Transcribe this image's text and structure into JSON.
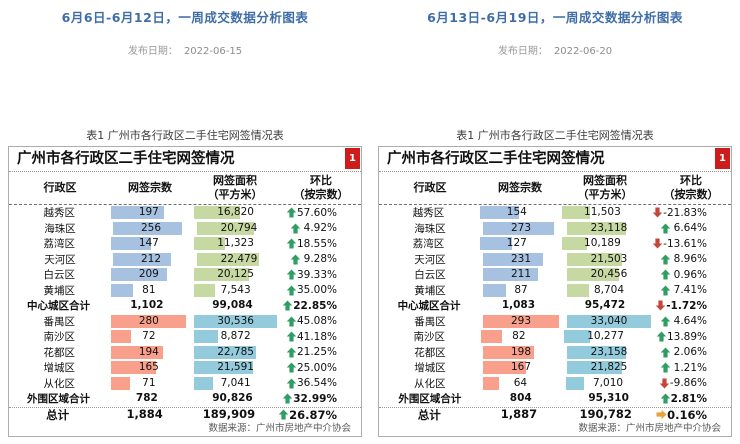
{
  "panels": [
    {
      "title": "6月6日-6月12日，一周成交数据分析图表",
      "publish_label": "发布日期：",
      "publish_date": "2022-06-15",
      "caption": "表1 广州市各行政区二手住宅网签情况表",
      "table": {
        "header_title": "广州市各行政区二手住宅网签情况",
        "badge": "1",
        "columns": [
          {
            "label": "行政区",
            "sub": ""
          },
          {
            "label": "网签宗数",
            "sub": ""
          },
          {
            "label": "网签面积",
            "sub": "（平方米）"
          },
          {
            "label": "环比",
            "sub": "（按宗数）"
          }
        ],
        "rows": [
          {
            "name": "越秀区",
            "count": "197",
            "count_v": 197,
            "area": "16,820",
            "area_v": 16820,
            "dir": "up",
            "pct": "57.60%",
            "group": "central"
          },
          {
            "name": "海珠区",
            "count": "256",
            "count_v": 256,
            "area": "20,794",
            "area_v": 20794,
            "dir": "up",
            "pct": "4.92%",
            "group": "central"
          },
          {
            "name": "荔湾区",
            "count": "147",
            "count_v": 147,
            "area": "11,323",
            "area_v": 11323,
            "dir": "up",
            "pct": "18.55%",
            "group": "central"
          },
          {
            "name": "天河区",
            "count": "212",
            "count_v": 212,
            "area": "22,479",
            "area_v": 22479,
            "dir": "up",
            "pct": "9.28%",
            "group": "central"
          },
          {
            "name": "白云区",
            "count": "209",
            "count_v": 209,
            "area": "20,125",
            "area_v": 20125,
            "dir": "up",
            "pct": "39.33%",
            "group": "central"
          },
          {
            "name": "黄埔区",
            "count": "81",
            "count_v": 81,
            "area": "7,543",
            "area_v": 7543,
            "dir": "up",
            "pct": "35.00%",
            "group": "central"
          },
          {
            "name": "中心城区合计",
            "count": "1,102",
            "count_v": 1102,
            "area": "99,084",
            "area_v": 99084,
            "dir": "up",
            "pct": "22.85%",
            "group": "summary"
          },
          {
            "name": "番禺区",
            "count": "280",
            "count_v": 280,
            "area": "30,536",
            "area_v": 30536,
            "dir": "up",
            "pct": "45.08%",
            "group": "outer"
          },
          {
            "name": "南沙区",
            "count": "72",
            "count_v": 72,
            "area": "8,872",
            "area_v": 8872,
            "dir": "up",
            "pct": "41.18%",
            "group": "outer"
          },
          {
            "name": "花都区",
            "count": "194",
            "count_v": 194,
            "area": "22,785",
            "area_v": 22785,
            "dir": "up",
            "pct": "21.25%",
            "group": "outer"
          },
          {
            "name": "增城区",
            "count": "165",
            "count_v": 165,
            "area": "21,591",
            "area_v": 21591,
            "dir": "up",
            "pct": "25.00%",
            "group": "outer"
          },
          {
            "name": "从化区",
            "count": "71",
            "count_v": 71,
            "area": "7,041",
            "area_v": 7041,
            "dir": "up",
            "pct": "36.54%",
            "group": "outer"
          },
          {
            "name": "外围区域合计",
            "count": "782",
            "count_v": 782,
            "area": "90,826",
            "area_v": 90826,
            "dir": "up",
            "pct": "32.99%",
            "group": "summary"
          },
          {
            "name": "总计",
            "count": "1,884",
            "count_v": 1884,
            "area": "189,909",
            "area_v": 189909,
            "dir": "up",
            "pct": "26.87%",
            "group": "total"
          }
        ],
        "source": "数据来源：广州市房地产中介协会"
      }
    },
    {
      "title": "6月13日-6月19日，一周成交数据分析图表",
      "publish_label": "发布日期：",
      "publish_date": "2022-06-20",
      "caption": "表1 广州市各行政区二手住宅网签情况表",
      "table": {
        "header_title": "广州市各行政区二手住宅网签情况",
        "badge": "1",
        "columns": [
          {
            "label": "行政区",
            "sub": ""
          },
          {
            "label": "网签宗数",
            "sub": ""
          },
          {
            "label": "网签面积",
            "sub": "（平方米）"
          },
          {
            "label": "环比",
            "sub": "（按宗数）"
          }
        ],
        "rows": [
          {
            "name": "越秀区",
            "count": "154",
            "count_v": 154,
            "area": "11,503",
            "area_v": 11503,
            "dir": "down",
            "pct": "-21.83%",
            "group": "central"
          },
          {
            "name": "海珠区",
            "count": "273",
            "count_v": 273,
            "area": "23,118",
            "area_v": 23118,
            "dir": "up",
            "pct": "6.64%",
            "group": "central"
          },
          {
            "name": "荔湾区",
            "count": "127",
            "count_v": 127,
            "area": "10,189",
            "area_v": 10189,
            "dir": "down",
            "pct": "-13.61%",
            "group": "central"
          },
          {
            "name": "天河区",
            "count": "231",
            "count_v": 231,
            "area": "21,503",
            "area_v": 21503,
            "dir": "up",
            "pct": "8.96%",
            "group": "central"
          },
          {
            "name": "白云区",
            "count": "211",
            "count_v": 211,
            "area": "20,456",
            "area_v": 20456,
            "dir": "up",
            "pct": "0.96%",
            "group": "central"
          },
          {
            "name": "黄埔区",
            "count": "87",
            "count_v": 87,
            "area": "8,704",
            "area_v": 8704,
            "dir": "up",
            "pct": "7.41%",
            "group": "central"
          },
          {
            "name": "中心城区合计",
            "count": "1,083",
            "count_v": 1083,
            "area": "95,472",
            "area_v": 95472,
            "dir": "down",
            "pct": "-1.72%",
            "group": "summary"
          },
          {
            "name": "番禺区",
            "count": "293",
            "count_v": 293,
            "area": "33,040",
            "area_v": 33040,
            "dir": "up",
            "pct": "4.64%",
            "group": "outer"
          },
          {
            "name": "南沙区",
            "count": "82",
            "count_v": 82,
            "area": "10,277",
            "area_v": 10277,
            "dir": "up",
            "pct": "13.89%",
            "group": "outer"
          },
          {
            "name": "花都区",
            "count": "198",
            "count_v": 198,
            "area": "23,158",
            "area_v": 23158,
            "dir": "up",
            "pct": "2.06%",
            "group": "outer"
          },
          {
            "name": "增城区",
            "count": "167",
            "count_v": 167,
            "area": "21,825",
            "area_v": 21825,
            "dir": "up",
            "pct": "1.21%",
            "group": "outer"
          },
          {
            "name": "从化区",
            "count": "64",
            "count_v": 64,
            "area": "7,010",
            "area_v": 7010,
            "dir": "down",
            "pct": "-9.86%",
            "group": "outer"
          },
          {
            "name": "外围区域合计",
            "count": "804",
            "count_v": 804,
            "area": "95,310",
            "area_v": 95310,
            "dir": "up",
            "pct": "2.81%",
            "group": "summary"
          },
          {
            "name": "总计",
            "count": "1,887",
            "count_v": 1887,
            "area": "190,782",
            "area_v": 190782,
            "dir": "flat",
            "pct": "0.16%",
            "group": "total"
          }
        ],
        "source": "数据来源：广州市房地产中介协会"
      }
    }
  ],
  "colors": {
    "title_blue": "#3f6da8",
    "bar_count_central": "#a7c2e0",
    "bar_area_central": "#c6d9a2",
    "bar_count_outer": "#f9a08d",
    "bar_area_outer": "#93cbdc",
    "arrow_up": "#2f9e63",
    "arrow_down": "#c4473a",
    "arrow_flat": "#e8a33d",
    "badge_red": "#ce1c1c"
  }
}
